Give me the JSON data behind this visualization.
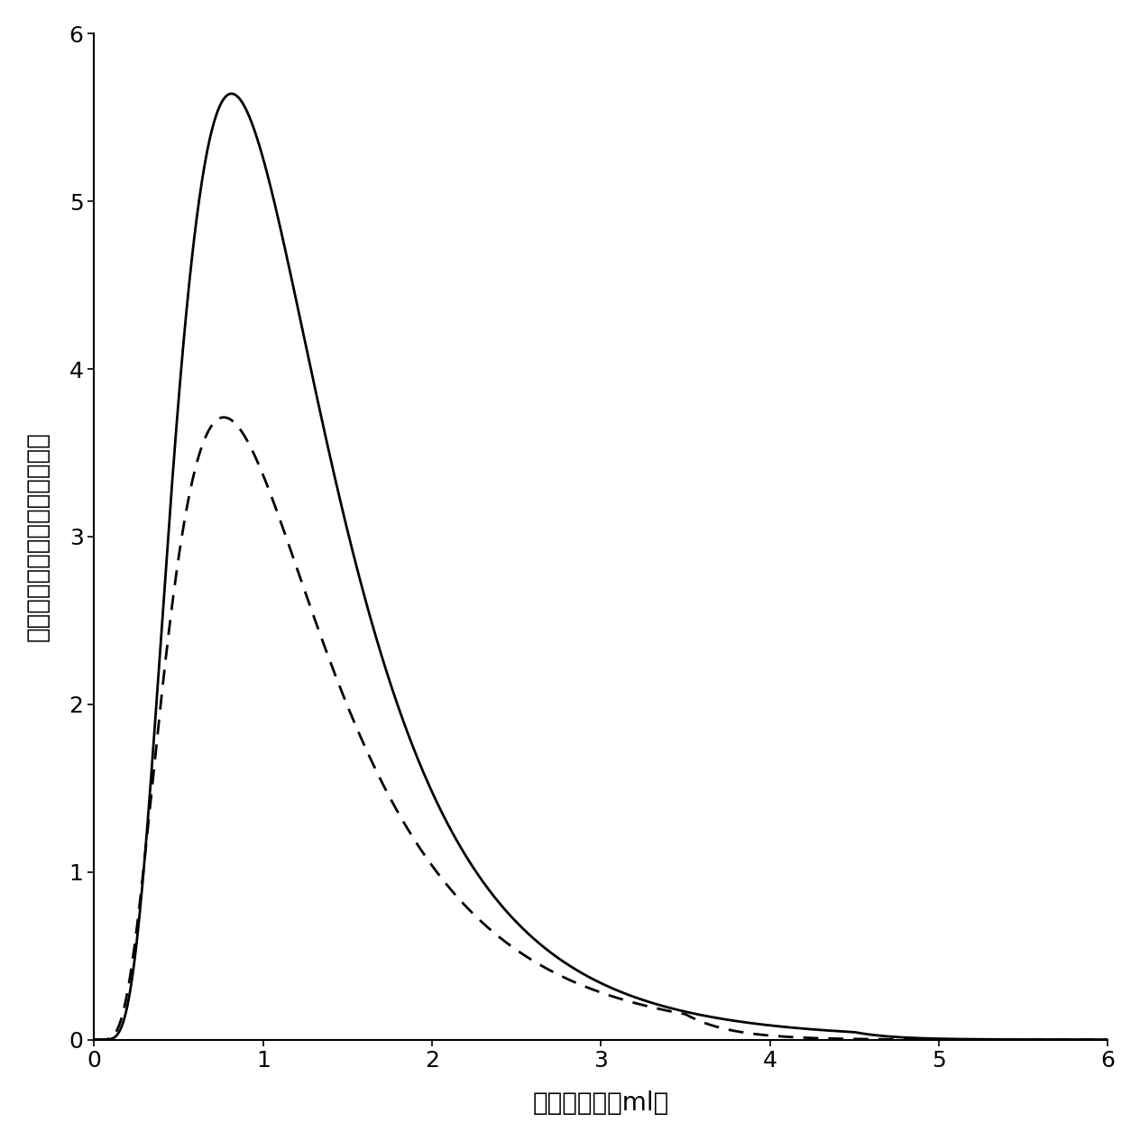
{
  "xlim": [
    0,
    6
  ],
  "ylim": [
    0,
    6
  ],
  "xticks": [
    0,
    1,
    2,
    3,
    4,
    5,
    6
  ],
  "yticks": [
    0,
    1,
    2,
    3,
    4,
    5,
    6
  ],
  "xlabel": "洗脱剂体积（ml）",
  "ylabel": "洗脱剂中所含洗脱物的相对浓度",
  "solid_peak_x": 1.1,
  "solid_peak_y": 4.85,
  "solid_alpha": 1.2,
  "solid_beta": 0.55,
  "dashed_peak_x": 1.1,
  "dashed_peak_y": 3.1,
  "dashed_alpha": 1.4,
  "dashed_beta": 0.6,
  "line_color": "#000000",
  "background_color": "#ffffff",
  "figsize": [
    12.64,
    12.65
  ],
  "dpi": 100
}
